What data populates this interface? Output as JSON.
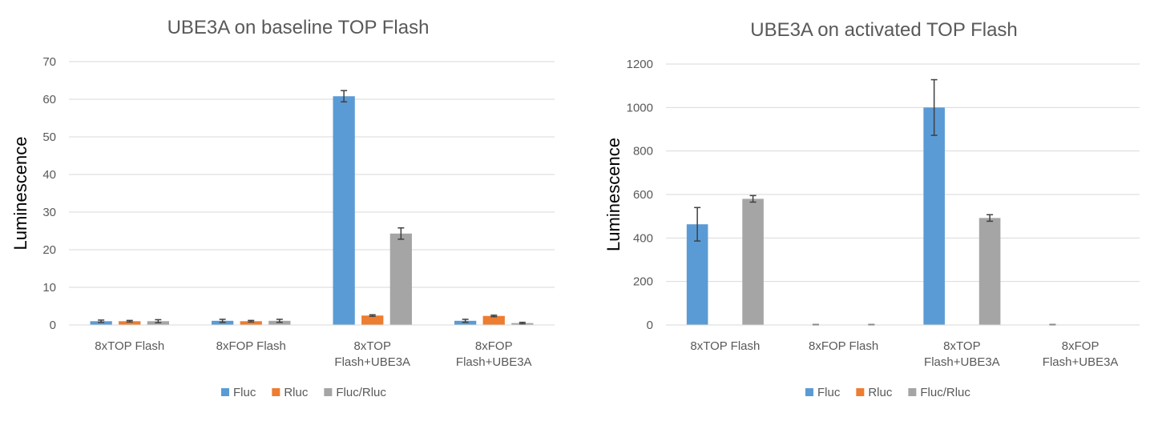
{
  "chart_data": [
    {
      "type": "bar",
      "title": "UBE3A on baseline TOP Flash",
      "xlabel": "",
      "ylabel": "Luminescence",
      "ylim": [
        0,
        70
      ],
      "yticks": [
        "0",
        "10",
        "20",
        "30",
        "40",
        "50",
        "60",
        "70"
      ],
      "categories": [
        [
          "8xTOP Flash"
        ],
        [
          "8xFOP Flash"
        ],
        [
          "8xTOP",
          "Flash+UBE3A"
        ],
        [
          "8xFOP",
          "Flash+UBE3A"
        ]
      ],
      "series": [
        {
          "name": "Fluc",
          "color": "#5B9BD5",
          "values": [
            1.0,
            1.1,
            60.8,
            1.1
          ],
          "errors": [
            0.3,
            0.4,
            1.5,
            0.4
          ]
        },
        {
          "name": "Rluc",
          "color": "#ED7D31",
          "values": [
            1.0,
            1.0,
            2.5,
            2.4
          ],
          "errors": [
            0.2,
            0.2,
            0.2,
            0.2
          ]
        },
        {
          "name": "Fluc/Rluc",
          "color": "#A5A5A5",
          "values": [
            1.0,
            1.1,
            24.3,
            0.5
          ],
          "errors": [
            0.4,
            0.4,
            1.5,
            0.2
          ]
        }
      ],
      "grid": true,
      "legend": "bottom"
    },
    {
      "type": "bar",
      "title": "UBE3A on activated TOP Flash",
      "xlabel": "",
      "ylabel": "Luminescence",
      "ylim": [
        0,
        1200
      ],
      "yticks": [
        "0",
        "200",
        "400",
        "600",
        "800",
        "1000",
        "1200"
      ],
      "categories": [
        [
          "8xTOP Flash"
        ],
        [
          "8xFOP Flash"
        ],
        [
          "8xTOP",
          "Flash+UBE3A"
        ],
        [
          "8xFOP",
          "Flash+UBE3A"
        ]
      ],
      "series": [
        {
          "name": "Fluc",
          "color": "#5B9BD5",
          "values": [
            463,
            1,
            1000,
            1
          ],
          "errors": [
            77,
            1,
            128,
            1
          ]
        },
        {
          "name": "Rluc",
          "color": "#ED7D31",
          "values": [
            0.5,
            0.5,
            0.5,
            0.5
          ],
          "errors": [
            0,
            0,
            0,
            0
          ]
        },
        {
          "name": "Fluc/Rluc",
          "color": "#A5A5A5",
          "values": [
            580,
            1,
            492,
            0.5
          ],
          "errors": [
            15,
            1,
            15,
            0
          ]
        }
      ],
      "grid": true,
      "legend": "bottom"
    }
  ]
}
